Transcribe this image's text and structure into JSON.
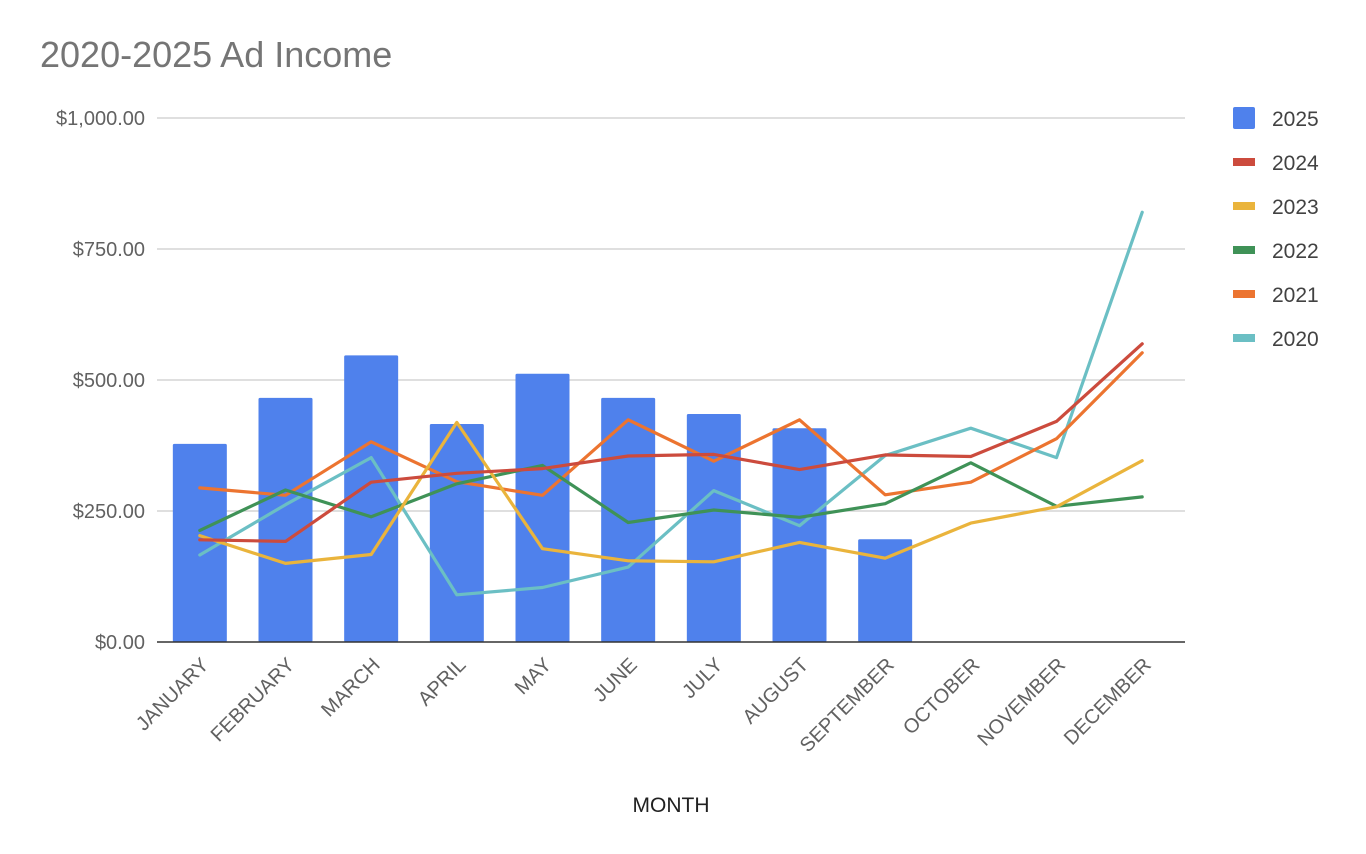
{
  "chart_data": {
    "type": "bar+line",
    "title": "2020-2025 Ad Income",
    "xlabel": "MONTH",
    "ylabel": "",
    "ylim": [
      0,
      1000
    ],
    "y_ticks": [
      0,
      250,
      500,
      750,
      1000
    ],
    "y_tick_labels": [
      "$0.00",
      "$250.00",
      "$500.00",
      "$750.00",
      "$1,000.00"
    ],
    "grid": true,
    "legend_position": "right",
    "categories": [
      "JANUARY",
      "FEBRUARY",
      "MARCH",
      "APRIL",
      "MAY",
      "JUNE",
      "JULY",
      "AUGUST",
      "SEPTEMBER",
      "OCTOBER",
      "NOVEMBER",
      "DECEMBER"
    ],
    "series": [
      {
        "name": "2025",
        "type": "bar",
        "color": "#4f81ec",
        "values": [
          378,
          466,
          547,
          416,
          512,
          466,
          435,
          408,
          196,
          null,
          null,
          null
        ]
      },
      {
        "name": "2024",
        "type": "line",
        "color": "#cc4b3d",
        "values": [
          195,
          192,
          305,
          322,
          331,
          355,
          358,
          329,
          357,
          354,
          421,
          569
        ]
      },
      {
        "name": "2023",
        "type": "line",
        "color": "#eab43c",
        "values": [
          203,
          150,
          167,
          419,
          178,
          155,
          153,
          190,
          160,
          227,
          258,
          346
        ]
      },
      {
        "name": "2022",
        "type": "line",
        "color": "#3f9257",
        "values": [
          213,
          290,
          239,
          302,
          337,
          228,
          252,
          238,
          264,
          342,
          259,
          277
        ]
      },
      {
        "name": "2021",
        "type": "line",
        "color": "#ec7430",
        "values": [
          294,
          280,
          382,
          306,
          280,
          424,
          345,
          424,
          281,
          305,
          388,
          552
        ]
      },
      {
        "name": "2020",
        "type": "line",
        "color": "#6bbfc4",
        "values": [
          166,
          262,
          352,
          90,
          104,
          143,
          289,
          222,
          356,
          408,
          352,
          820
        ]
      }
    ]
  }
}
